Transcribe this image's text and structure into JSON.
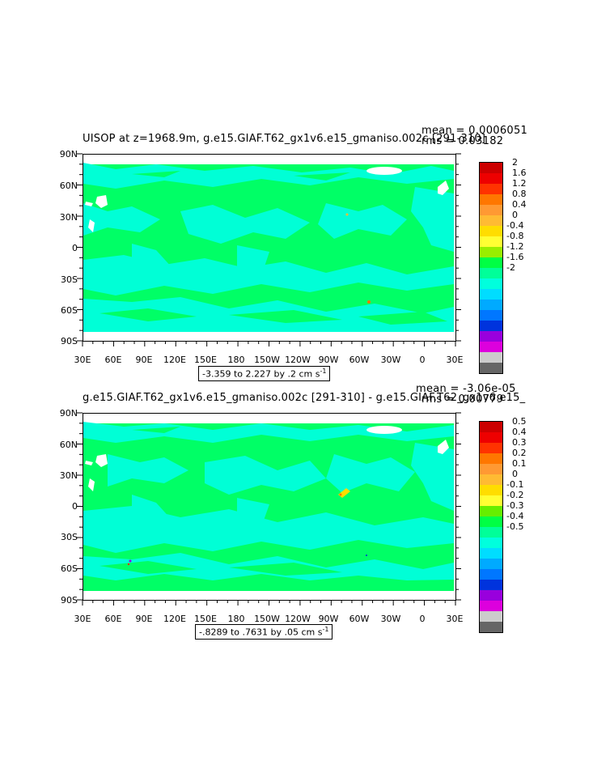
{
  "colors": {
    "zero": "#00ff66",
    "neg_small": "#00ffdd",
    "land": "#ffffff"
  },
  "panels": [
    {
      "title": "UISOP at z=1968.9m, g.e15.GIAF.T62_gx1v6.e15_gmaniso.002c [291-310]",
      "mean": "mean = 0.0006051",
      "rms": "rms = 0.03182",
      "range": "-3.359 to 2.227 by .2 cm s",
      "range_sup": "-1",
      "ylabels": [
        "90N",
        "60N",
        "30N",
        "0",
        "30S",
        "60S",
        "90S"
      ],
      "xlabels": [
        "30E",
        "60E",
        "90E",
        "120E",
        "150E",
        "180",
        "150W",
        "120W",
        "90W",
        "60W",
        "30W",
        "0",
        "30E"
      ],
      "colorbar_labels": [
        "2",
        "1.6",
        "1.2",
        "0.8",
        "0.4",
        "0",
        "-0.4",
        "-0.8",
        "-1.2",
        "-1.6",
        "-2"
      ],
      "colorbar_colors": [
        "#cc0000",
        "#ee0000",
        "#ff3300",
        "#ff7700",
        "#ff9933",
        "#ffbb33",
        "#ffdd00",
        "#ffff33",
        "#99ee00",
        "#00ff44",
        "#00ff99",
        "#00ffdd",
        "#00ddff",
        "#00aaff",
        "#0077ff",
        "#0033dd",
        "#9900dd",
        "#dd00dd",
        "#cccccc",
        "#666666"
      ]
    },
    {
      "title": "g.e15.GIAF.T62_gx1v6.e15_gmaniso.002c [291-310] - g.e15.GIAF.T62_gx1v6.e15_",
      "mean": "mean = -3.06e-05",
      "rms": "rms = 0.00779",
      "range": "-.8289 to .7631 by .05 cm s",
      "range_sup": "-1",
      "ylabels": [
        "90N",
        "60N",
        "30N",
        "0",
        "30S",
        "60S",
        "90S"
      ],
      "xlabels": [
        "30E",
        "60E",
        "90E",
        "120E",
        "150E",
        "180",
        "150W",
        "120W",
        "90W",
        "60W",
        "30W",
        "0",
        "30E"
      ],
      "colorbar_labels": [
        "0.5",
        "0.4",
        "0.3",
        "0.2",
        "0.1",
        "0",
        "-0.1",
        "-0.2",
        "-0.3",
        "-0.4",
        "-0.5"
      ],
      "colorbar_colors": [
        "#cc0000",
        "#ee0000",
        "#ff3300",
        "#ff7700",
        "#ff9933",
        "#ffbb33",
        "#ffdd00",
        "#ffff33",
        "#66ee00",
        "#00ff44",
        "#00ff99",
        "#00ffdd",
        "#00ddff",
        "#00aaff",
        "#0077ff",
        "#0033dd",
        "#9900dd",
        "#dd00dd",
        "#cccccc",
        "#666666"
      ]
    }
  ]
}
